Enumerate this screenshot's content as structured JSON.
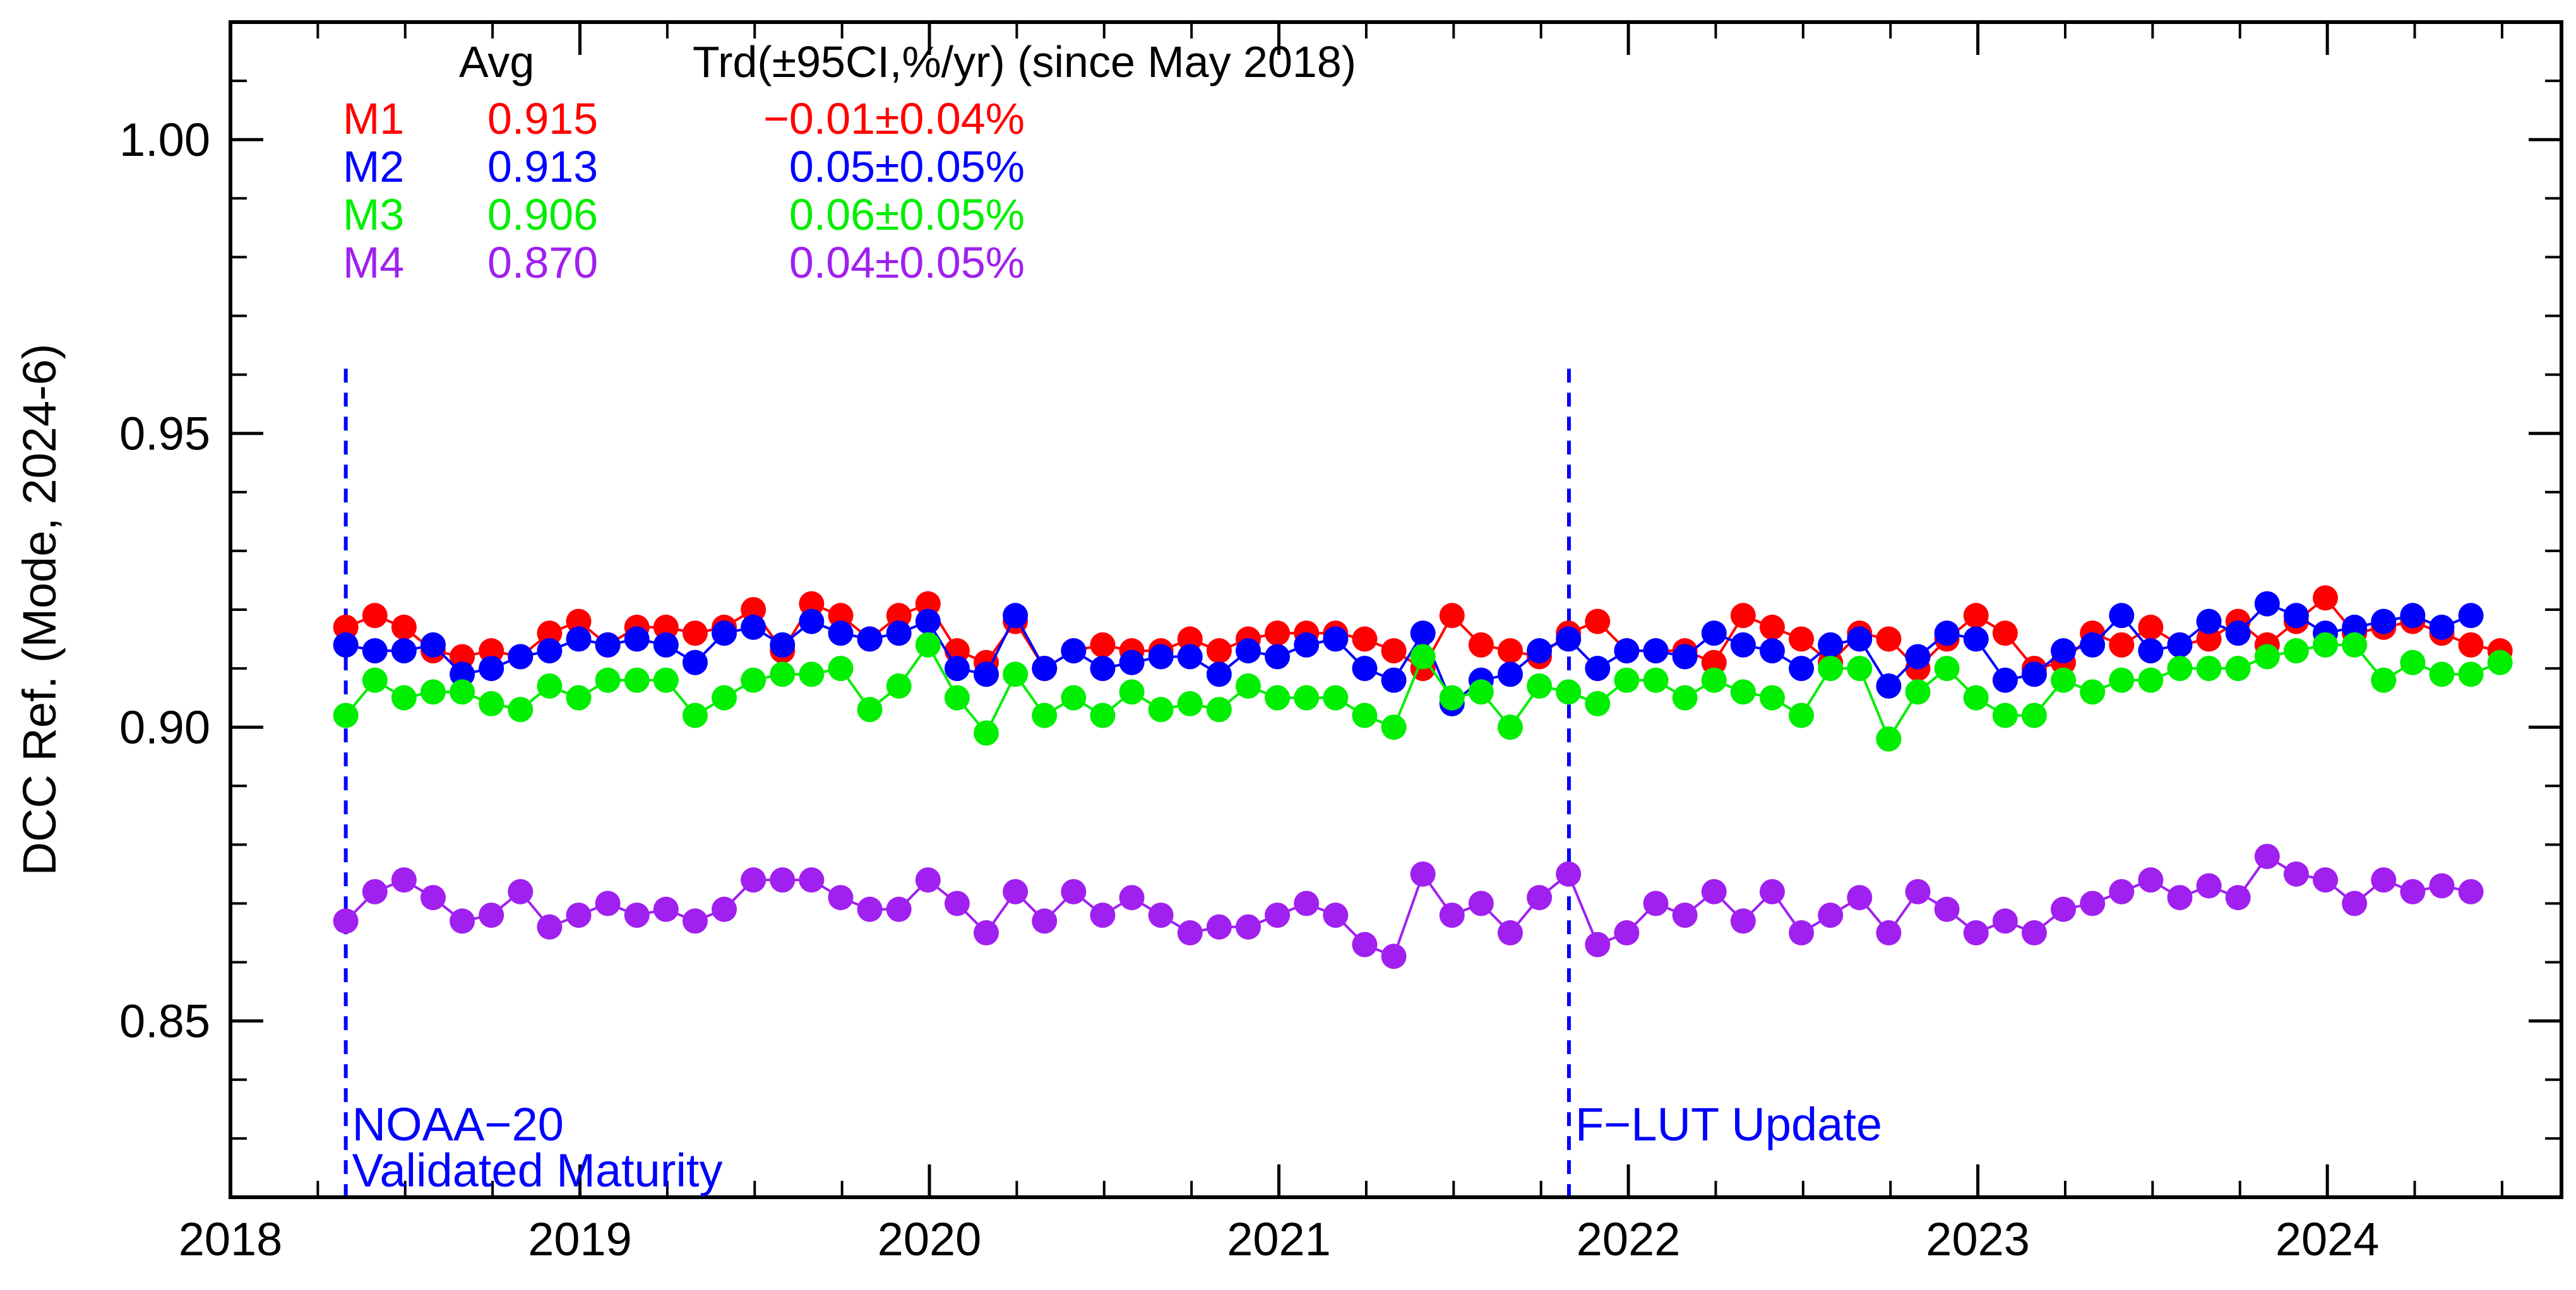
{
  "chart_data": {
    "type": "scatter",
    "title": "",
    "xlabel": "",
    "ylabel": "DCC Ref. (Mode, 2024-6)",
    "xlim": [
      2018.0,
      2024.67
    ],
    "ylim": [
      0.82,
      1.02
    ],
    "x_ticks": [
      2018,
      2019,
      2020,
      2021,
      2022,
      2023,
      2024
    ],
    "x_tick_labels": [
      "2018",
      "2019",
      "2020",
      "2021",
      "2022",
      "2023",
      "2024"
    ],
    "y_ticks": [
      0.85,
      0.9,
      0.95,
      1.0
    ],
    "y_tick_labels": [
      "0.85",
      "0.90",
      "0.95",
      "1.00"
    ],
    "x_start": 2018.33,
    "x_step": 0.0833,
    "series": [
      {
        "name": "M1",
        "color": "#ff0000",
        "avg": "0.915",
        "trend": "−0.01±0.04%",
        "values": [
          0.917,
          0.919,
          0.917,
          0.913,
          0.912,
          0.913,
          0.912,
          0.916,
          0.918,
          0.914,
          0.917,
          0.917,
          0.916,
          0.917,
          0.92,
          0.913,
          0.921,
          0.919,
          0.915,
          0.919,
          0.921,
          0.913,
          0.911,
          0.918,
          0.91,
          0.913,
          0.914,
          0.913,
          0.913,
          0.915,
          0.913,
          0.915,
          0.916,
          0.916,
          0.916,
          0.915,
          0.913,
          0.91,
          0.919,
          0.914,
          0.913,
          0.912,
          0.916,
          0.918,
          0.913,
          0.913,
          0.913,
          0.911,
          0.919,
          0.917,
          0.915,
          0.911,
          0.916,
          0.915,
          0.91,
          0.915,
          0.919,
          0.916,
          0.91,
          0.911,
          0.916,
          0.914,
          0.917,
          0.914,
          0.915,
          0.918,
          0.914,
          0.918,
          0.922,
          0.916,
          0.917,
          0.918,
          0.916,
          0.914,
          0.913
        ]
      },
      {
        "name": "M2",
        "color": "#0000ff",
        "avg": "0.913",
        "trend": "0.05±0.05%",
        "values": [
          0.914,
          0.913,
          0.913,
          0.914,
          0.909,
          0.91,
          0.912,
          0.913,
          0.915,
          0.914,
          0.915,
          0.914,
          0.911,
          0.916,
          0.917,
          0.914,
          0.918,
          0.916,
          0.915,
          0.916,
          0.918,
          0.91,
          0.909,
          0.919,
          0.91,
          0.913,
          0.91,
          0.911,
          0.912,
          0.912,
          0.909,
          0.913,
          0.912,
          0.914,
          0.915,
          0.91,
          0.908,
          0.916,
          0.904,
          0.908,
          0.909,
          0.913,
          0.915,
          0.91,
          0.913,
          0.913,
          0.912,
          0.916,
          0.914,
          0.913,
          0.91,
          0.914,
          0.915,
          0.907,
          0.912,
          0.916,
          0.915,
          0.908,
          0.909,
          0.913,
          0.914,
          0.919,
          0.913,
          0.914,
          0.918,
          0.916,
          0.921,
          0.919,
          0.916,
          0.917,
          0.918,
          0.919,
          0.917,
          0.919
        ]
      },
      {
        "name": "M3",
        "color": "#00ee00",
        "avg": "0.906",
        "trend": "0.06±0.05%",
        "values": [
          0.902,
          0.908,
          0.905,
          0.906,
          0.906,
          0.904,
          0.903,
          0.907,
          0.905,
          0.908,
          0.908,
          0.908,
          0.902,
          0.905,
          0.908,
          0.909,
          0.909,
          0.91,
          0.903,
          0.907,
          0.914,
          0.905,
          0.899,
          0.909,
          0.902,
          0.905,
          0.902,
          0.906,
          0.903,
          0.904,
          0.903,
          0.907,
          0.905,
          0.905,
          0.905,
          0.902,
          0.9,
          0.912,
          0.905,
          0.906,
          0.9,
          0.907,
          0.906,
          0.904,
          0.908,
          0.908,
          0.905,
          0.908,
          0.906,
          0.905,
          0.902,
          0.91,
          0.91,
          0.898,
          0.906,
          0.91,
          0.905,
          0.902,
          0.902,
          0.908,
          0.906,
          0.908,
          0.908,
          0.91,
          0.91,
          0.91,
          0.912,
          0.913,
          0.914,
          0.914,
          0.908,
          0.911,
          0.909,
          0.909,
          0.911
        ]
      },
      {
        "name": "M4",
        "color": "#a020f0",
        "avg": "0.870",
        "trend": "0.04±0.05%",
        "values": [
          0.867,
          0.872,
          0.874,
          0.871,
          0.867,
          0.868,
          0.872,
          0.866,
          0.868,
          0.87,
          0.868,
          0.869,
          0.867,
          0.869,
          0.874,
          0.874,
          0.874,
          0.871,
          0.869,
          0.869,
          0.874,
          0.87,
          0.865,
          0.872,
          0.867,
          0.872,
          0.868,
          0.871,
          0.868,
          0.865,
          0.866,
          0.866,
          0.868,
          0.87,
          0.868,
          0.863,
          0.861,
          0.875,
          0.868,
          0.87,
          0.865,
          0.871,
          0.875,
          0.863,
          0.865,
          0.87,
          0.868,
          0.872,
          0.867,
          0.872,
          0.865,
          0.868,
          0.871,
          0.865,
          0.872,
          0.869,
          0.865,
          0.867,
          0.865,
          0.869,
          0.87,
          0.872,
          0.874,
          0.871,
          0.873,
          0.871,
          0.878,
          0.875,
          0.874,
          0.87,
          0.874,
          0.872,
          0.873,
          0.872
        ]
      }
    ],
    "legend": {
      "header_avg": "Avg",
      "header_trend": "Trd(±95CI,%/yr) (since May 2018)",
      "position": "top-left"
    },
    "annotations": [
      {
        "x": 2018.33,
        "lines": [
          "NOAA−20",
          "Validated Maturity"
        ],
        "color": "#0000ff"
      },
      {
        "x": 2021.83,
        "lines": [
          "F−LUT Update"
        ],
        "color": "#0000ff"
      }
    ]
  }
}
